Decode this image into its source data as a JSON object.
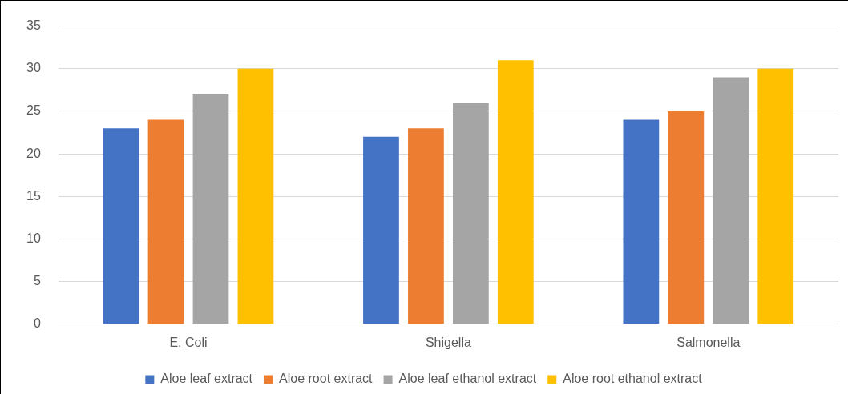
{
  "chart_data": {
    "type": "bar",
    "categories": [
      "E. Coli",
      "Shigella",
      "Salmonella"
    ],
    "series": [
      {
        "name": "Aloe leaf extract",
        "color": "#4472c4",
        "values": [
          23,
          22,
          24
        ]
      },
      {
        "name": "Aloe root extract",
        "color": "#ed7d31",
        "values": [
          24,
          23,
          25
        ]
      },
      {
        "name": "Aloe leaf ethanol extract",
        "color": "#a5a5a5",
        "values": [
          27,
          26,
          29
        ]
      },
      {
        "name": "Aloe root ethanol extract",
        "color": "#ffc000",
        "values": [
          30,
          31,
          30
        ]
      }
    ],
    "ylim": [
      0,
      35
    ],
    "yticks": [
      0,
      5,
      10,
      15,
      20,
      25,
      30,
      35
    ],
    "grid": "y",
    "legend": "bottom"
  }
}
